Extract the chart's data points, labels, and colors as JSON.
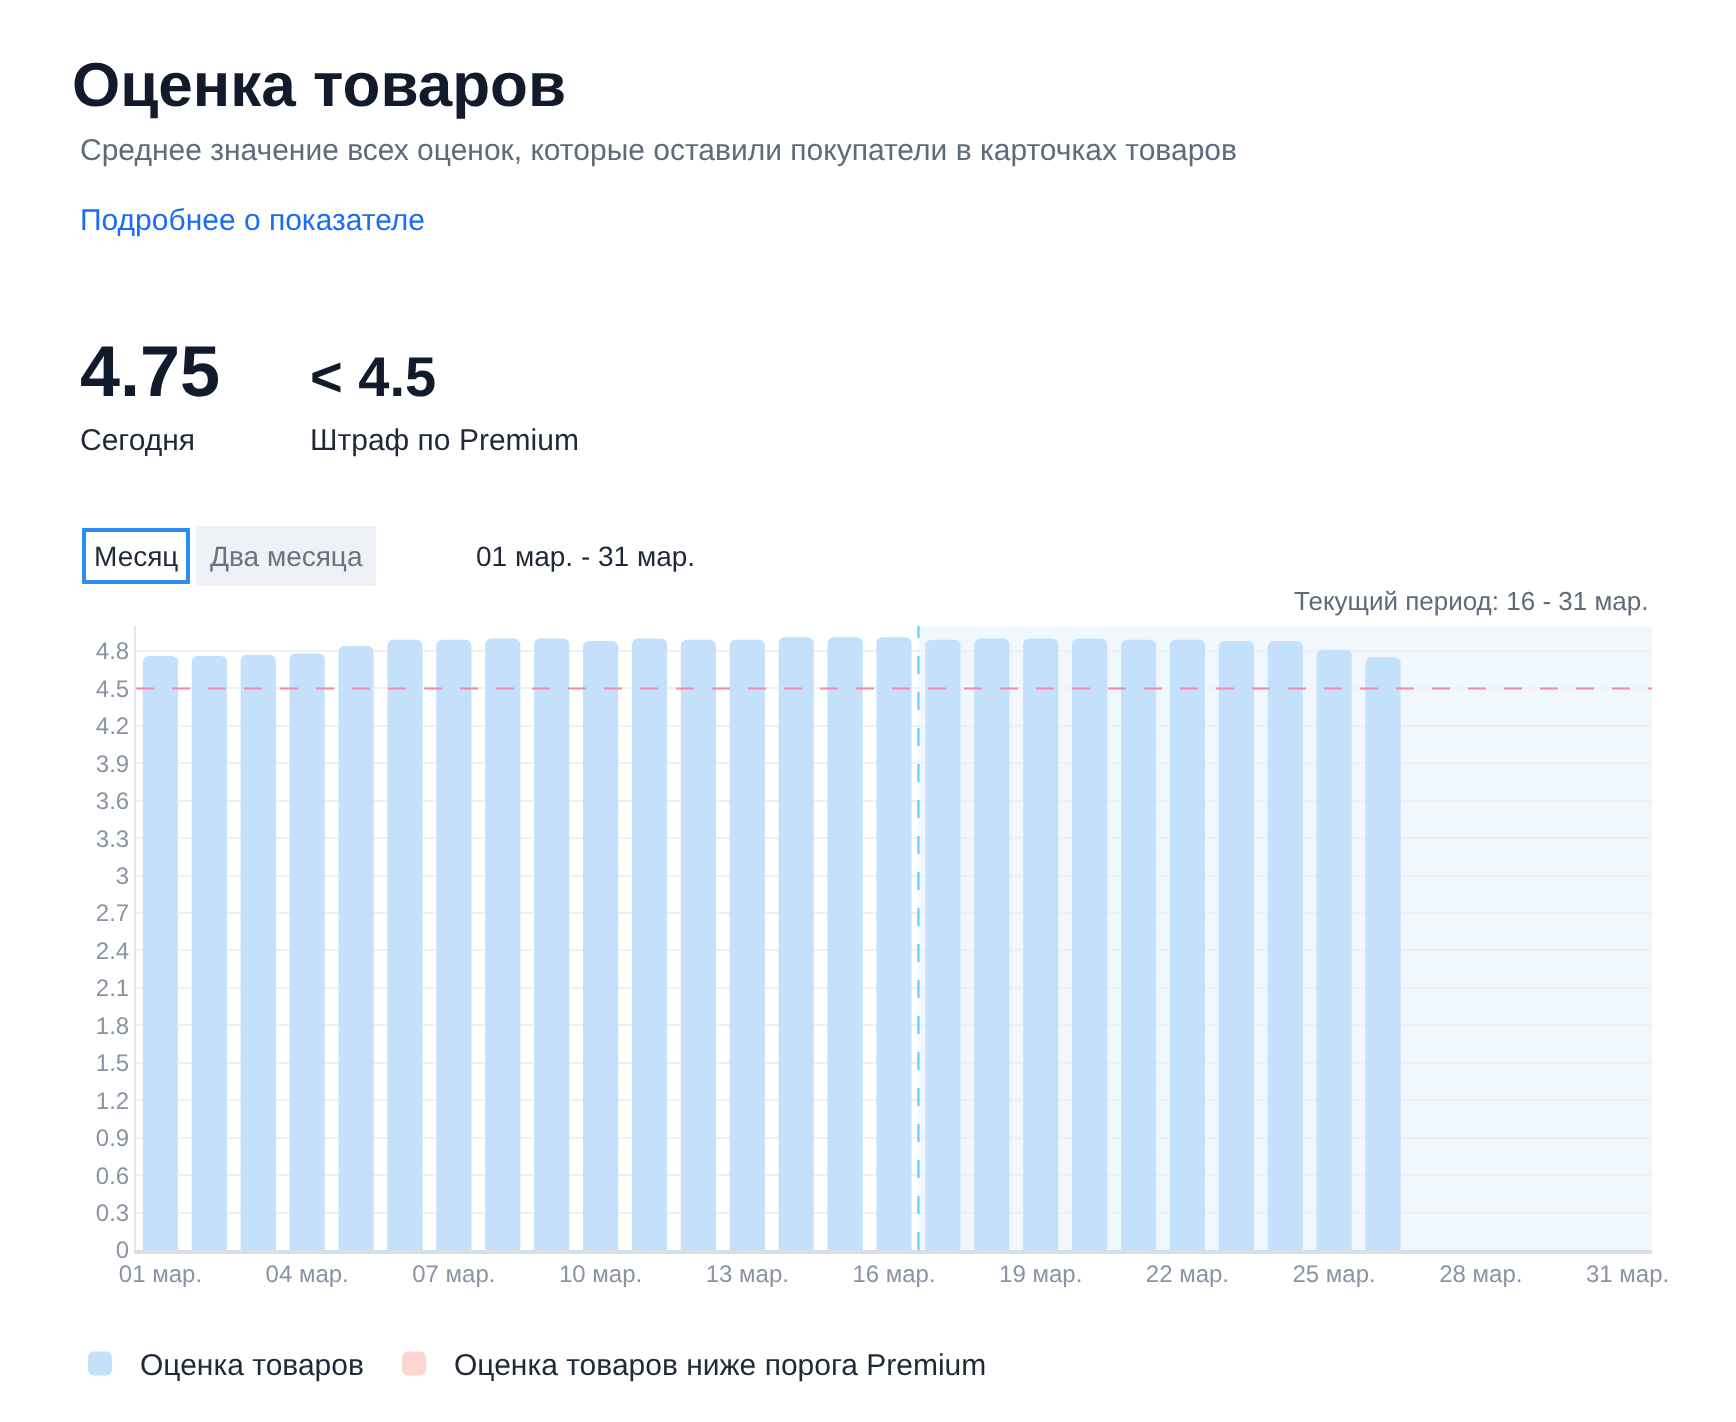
{
  "chart_data": {
    "type": "bar",
    "title": "Оценка товаров",
    "subtitle": "Среднее значение всех оценок, которые оставили покупатели в карточках товаров",
    "annotations": [
      "Подробнее о показателе",
      "4.75",
      "Сегодня",
      "< 4.5",
      "Штраф по Premium",
      "Месяц",
      "Два месяца",
      "01 мар. - 31 мар."
    ],
    "x": [
      1,
      2,
      3,
      4,
      5,
      6,
      7,
      8,
      9,
      10,
      11,
      12,
      13,
      14,
      15,
      16,
      17,
      18,
      19,
      20,
      21,
      22,
      23,
      24,
      25,
      26
    ],
    "series": [
      {
        "name": "Оценка товаров",
        "color": "#c4e0fb",
        "values": [
          4.76,
          4.76,
          4.77,
          4.78,
          4.84,
          4.89,
          4.89,
          4.9,
          4.9,
          4.88,
          4.9,
          4.89,
          4.89,
          4.91,
          4.91,
          4.91,
          4.89,
          4.9,
          4.9,
          4.9,
          4.89,
          4.89,
          4.88,
          4.88,
          4.81,
          4.75
        ]
      },
      {
        "name": "Оценка товаров ниже порога Premium",
        "color": "#fdd6d3",
        "values": [
          null,
          null,
          null,
          null,
          null,
          null,
          null,
          null,
          null,
          null,
          null,
          null,
          null,
          null,
          null,
          null,
          null,
          null,
          null,
          null,
          null,
          null,
          null,
          null,
          null,
          null
        ]
      }
    ],
    "xlim": [
      0.5,
      31.5
    ],
    "xticks": [
      {
        "value": 1,
        "label": "01 мар."
      },
      {
        "value": 4,
        "label": "04 мар."
      },
      {
        "value": 7,
        "label": "07 мар."
      },
      {
        "value": 10,
        "label": "10 мар."
      },
      {
        "value": 13,
        "label": "13 мар."
      },
      {
        "value": 16,
        "label": "16 мар."
      },
      {
        "value": 19,
        "label": "19 мар."
      },
      {
        "value": 22,
        "label": "22 мар."
      },
      {
        "value": 25,
        "label": "25 мар."
      },
      {
        "value": 28,
        "label": "28 мар."
      },
      {
        "value": 31,
        "label": "31 мар."
      }
    ],
    "ylim": [
      0,
      5
    ],
    "yticks": [
      0,
      0.3,
      0.6,
      0.9,
      1.2,
      1.5,
      1.8,
      2.1,
      2.4,
      2.7,
      3,
      3.3,
      3.6,
      3.9,
      4.2,
      4.5,
      4.8
    ],
    "ref_lines": [
      {
        "axis": "y",
        "value": 4.5,
        "color": "#f08aa6",
        "line_style": "dashed"
      },
      {
        "axis": "x",
        "value": 16.5,
        "color": "#5cc6f7",
        "line_style": "dashed"
      }
    ],
    "bands": [
      {
        "axis": "x",
        "from": 16.5,
        "to": 31.5,
        "label": "Текущий период: 16 - 31 мар.",
        "color": "#f0f8fe"
      }
    ],
    "grid": "y",
    "legend": "bottom"
  }
}
